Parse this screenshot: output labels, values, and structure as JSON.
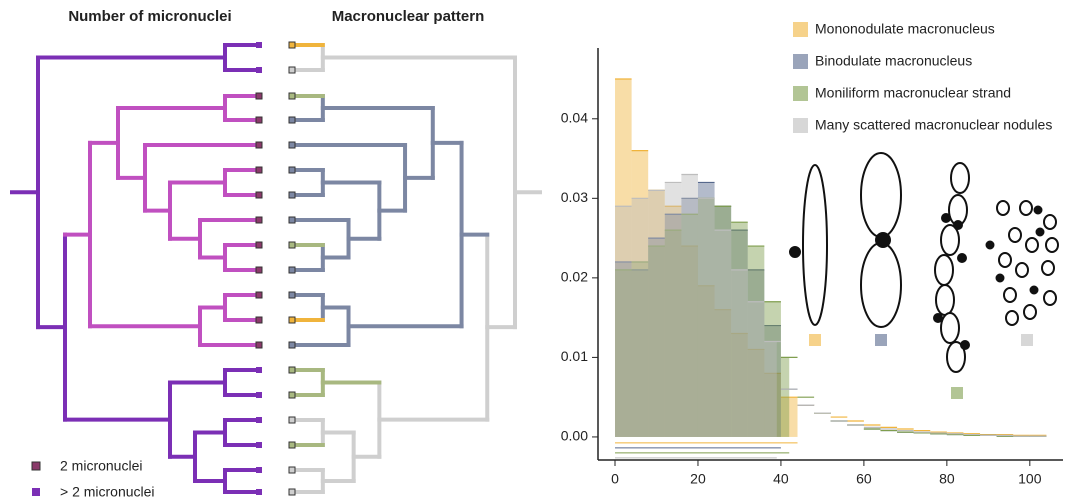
{
  "header": {
    "left_title": "Number of micronuclei",
    "right_title": "Macronuclear pattern"
  },
  "tree_legend": [
    "2 micronuclei",
    "> 2 micronuclei"
  ],
  "chart_data": {
    "type": "histogram",
    "bins": [
      0,
      4,
      8,
      12,
      16,
      20,
      24,
      28,
      32,
      36,
      40,
      44,
      48,
      52,
      56,
      60,
      64,
      68,
      72,
      76,
      80,
      84,
      88,
      92,
      96,
      100,
      104
    ],
    "series": [
      {
        "name": "Mononodulate macronucleus",
        "color": "#f0b43c",
        "range": [
          0,
          44
        ],
        "values": [
          0.045,
          0.036,
          0.031,
          0.029,
          0.024,
          0.019,
          0.016,
          0.013,
          0.011,
          0.008,
          0.005,
          0.004,
          0.003,
          0.0025,
          0.002,
          0.0015,
          0.0012,
          0.001,
          0.0008,
          0.0006,
          0.0005,
          0.0004,
          0.0003,
          0.0003,
          0.0002,
          0.0002
        ]
      },
      {
        "name": "Binodulate macronucleus",
        "color": "#56688c",
        "range": [
          0,
          40
        ],
        "values": [
          0.022,
          0.021,
          0.025,
          0.028,
          0.03,
          0.032,
          0.029,
          0.026,
          0.021,
          0.014,
          0.006,
          0.004,
          0.003,
          0.002,
          0.0015,
          0.001,
          0.0008,
          0.0006,
          0.0005,
          0.0004,
          0.0003,
          0.0002,
          0.0002,
          0.0001,
          0.0001,
          0.0001
        ]
      },
      {
        "name": "Moniliform macronuclear strand",
        "color": "#7f9e4e",
        "range": [
          0,
          42
        ],
        "values": [
          0.021,
          0.022,
          0.024,
          0.026,
          0.028,
          0.03,
          0.029,
          0.027,
          0.024,
          0.017,
          0.01,
          0.005,
          0.003,
          0.002,
          0.0015,
          0.001,
          0.0008,
          0.0006,
          0.0005,
          0.0004,
          0.0003,
          0.0002,
          0.0002,
          0.0001,
          0.0001,
          0.0001
        ]
      },
      {
        "name": "Many scattered macronuclear nodules",
        "color": "#bdbdbd",
        "range": [
          0,
          39
        ],
        "values": [
          0.029,
          0.03,
          0.031,
          0.032,
          0.033,
          0.03,
          0.026,
          0.021,
          0.017,
          0.012,
          0.006,
          0.004,
          0.003,
          0.002,
          0.0015,
          0.0012,
          0.001,
          0.0008,
          0.0006,
          0.0005,
          0.0004,
          0.0003,
          0.0002,
          0.0002,
          0.0001,
          0.0001
        ]
      }
    ],
    "xlim": [
      -4.1,
      108
    ],
    "ylim": [
      -0.0029,
      0.0489
    ],
    "xticks": [
      0,
      20,
      40,
      60,
      80,
      100
    ],
    "yticks": [
      {
        "value": 0,
        "label": "0.00"
      },
      0.01,
      0.02,
      0.03,
      0.04
    ],
    "legend": "upper right"
  }
}
